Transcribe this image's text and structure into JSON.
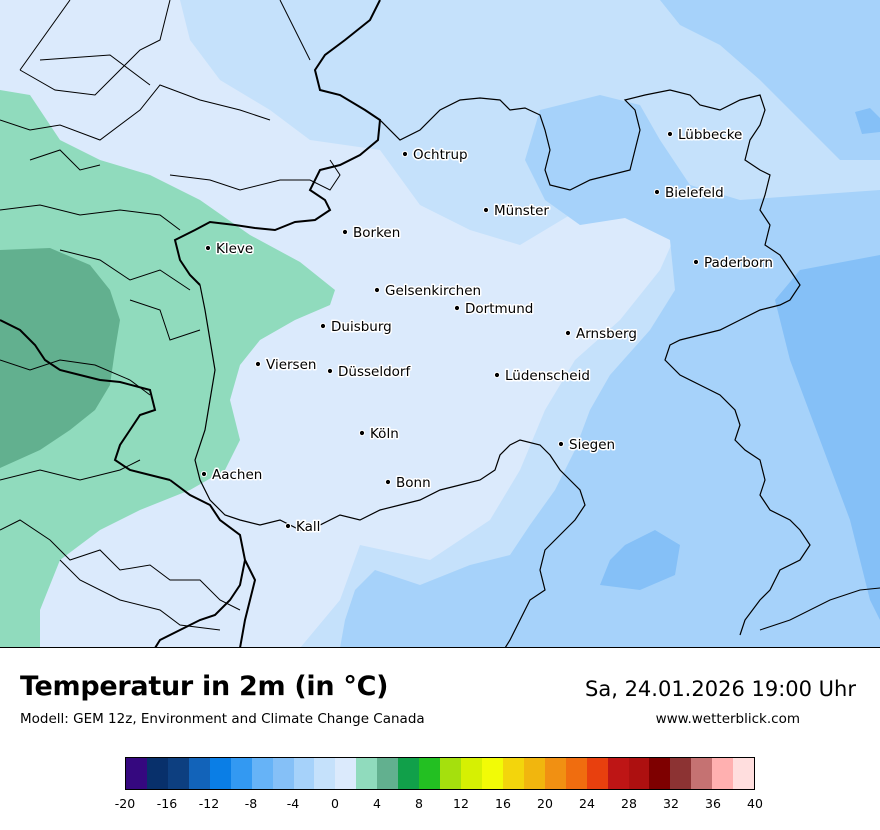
{
  "map": {
    "cities": [
      {
        "name": "Lübbecke"
      },
      {
        "name": "Ochtrup"
      },
      {
        "name": "Bielefeld"
      },
      {
        "name": "Münster"
      },
      {
        "name": "Borken"
      },
      {
        "name": "Kleve"
      },
      {
        "name": "Paderborn"
      },
      {
        "name": "Gelsenkirchen"
      },
      {
        "name": "Dortmund"
      },
      {
        "name": "Duisburg"
      },
      {
        "name": "Arnsberg"
      },
      {
        "name": "Viersen"
      },
      {
        "name": "Düsseldorf"
      },
      {
        "name": "Lüdenscheid"
      },
      {
        "name": "Köln"
      },
      {
        "name": "Siegen"
      },
      {
        "name": "Aachen"
      },
      {
        "name": "Bonn"
      },
      {
        "name": "Kall"
      }
    ]
  },
  "footer": {
    "title": "Temperatur in 2m (in °C)",
    "subtitle": "Modell: GEM 12z, Environment and Climate Change Canada",
    "datetime": "Sa, 24.01.2026 19:00 Uhr",
    "website": "www.wetterblick.com"
  },
  "legend": {
    "colors": [
      "#35087f",
      "#08306b",
      "#0d3f80",
      "#1263b9",
      "#0a7ee6",
      "#3399f2",
      "#66b3f7",
      "#85c0f7",
      "#a6d2fa",
      "#c5e1fb",
      "#dbeafc",
      "#90dbbd",
      "#62b08f",
      "#11a04a",
      "#23c022",
      "#a5e00d",
      "#d6f003",
      "#f2fb06",
      "#f3d50c",
      "#f1b60e",
      "#f19012",
      "#f06d0f",
      "#e8400e",
      "#be1515",
      "#ad1010",
      "#7e0000",
      "#8c3333",
      "#c57272",
      "#ffb0b0",
      "#ffdede"
    ],
    "ticks": [
      "-20",
      "-16",
      "-12",
      "-8",
      "-4",
      "0",
      "4",
      "8",
      "12",
      "16",
      "20",
      "24",
      "28",
      "32",
      "36",
      "40"
    ]
  }
}
